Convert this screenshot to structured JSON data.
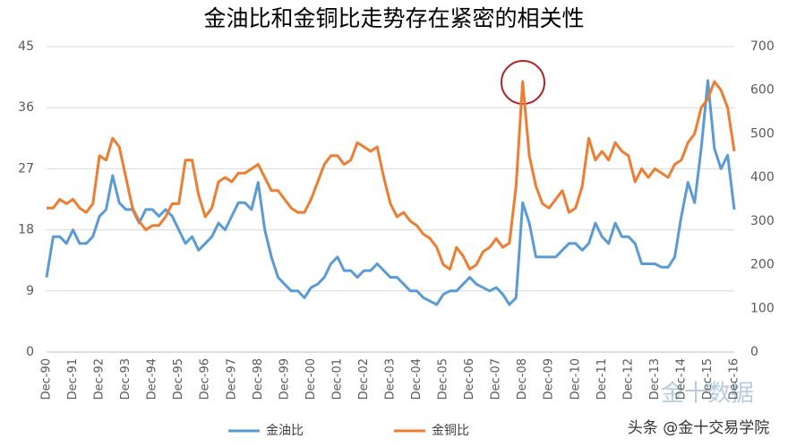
{
  "chart_data": {
    "type": "line",
    "title": "金油比和金铜比走势存在紧密的相关性",
    "categories": [
      "Dec-90",
      null,
      null,
      null,
      "Dec-91",
      null,
      null,
      null,
      "Dec-92",
      null,
      null,
      null,
      "Dec-93",
      null,
      null,
      null,
      "Dec-94",
      null,
      null,
      null,
      "Dec-95",
      null,
      null,
      null,
      "Dec-96",
      null,
      null,
      null,
      "Dec-97",
      null,
      null,
      null,
      "Dec-98",
      null,
      null,
      null,
      "Dec-99",
      null,
      null,
      null,
      "Dec-00",
      null,
      null,
      null,
      "Dec-01",
      null,
      null,
      null,
      "Dec-02",
      null,
      null,
      null,
      "Dec-03",
      null,
      null,
      null,
      "Dec-04",
      null,
      null,
      null,
      "Dec-05",
      null,
      null,
      null,
      "Dec-06",
      null,
      null,
      null,
      "Dec-07",
      null,
      null,
      null,
      "Dec-08",
      null,
      null,
      null,
      "Dec-09",
      null,
      null,
      null,
      "Dec-10",
      null,
      null,
      null,
      "Dec-11",
      null,
      null,
      null,
      "Dec-12",
      null,
      null,
      null,
      "Dec-13",
      null,
      null,
      null,
      "Dec-14",
      null,
      null,
      null,
      "Dec-15",
      null,
      null,
      null,
      "Dec-16"
    ],
    "series": [
      {
        "name": "金油比",
        "color": "#5b9bd5",
        "values": [
          11,
          17,
          17,
          16,
          18,
          16,
          16,
          17,
          20,
          21,
          26,
          22,
          21,
          21,
          19,
          21,
          21,
          20,
          21,
          20,
          18,
          16,
          17,
          15,
          16,
          17,
          19,
          18,
          20,
          22,
          22,
          21,
          25,
          18,
          14,
          11,
          10,
          9,
          9,
          8,
          9.5,
          10,
          11,
          13,
          14,
          12,
          12,
          11,
          12,
          12,
          13,
          12,
          11,
          11,
          10,
          9,
          9,
          8,
          7.5,
          7,
          8.5,
          9,
          9,
          10,
          11,
          10,
          9.5,
          9,
          9.5,
          8.5,
          7,
          8,
          22,
          19,
          14,
          14,
          14,
          14,
          15,
          16,
          16,
          15,
          16,
          19,
          17,
          16,
          19,
          17,
          17,
          16,
          13,
          13,
          13,
          12.5,
          12.5,
          14,
          20,
          25,
          22,
          30,
          40,
          30,
          27,
          29,
          21
        ]
      },
      {
        "name": "金铜比",
        "color": "#ed7d31",
        "axis": "y2",
        "values": [
          330,
          330,
          350,
          340,
          350,
          330,
          320,
          340,
          450,
          440,
          490,
          470,
          400,
          330,
          300,
          280,
          290,
          290,
          310,
          340,
          340,
          440,
          440,
          360,
          310,
          330,
          390,
          400,
          390,
          410,
          410,
          420,
          430,
          400,
          370,
          370,
          350,
          330,
          320,
          320,
          350,
          390,
          430,
          450,
          450,
          430,
          440,
          480,
          470,
          460,
          470,
          400,
          340,
          310,
          320,
          300,
          290,
          270,
          260,
          240,
          200,
          190,
          240,
          220,
          190,
          200,
          230,
          240,
          260,
          240,
          250,
          380,
          620,
          450,
          380,
          340,
          330,
          350,
          370,
          320,
          330,
          380,
          490,
          440,
          460,
          440,
          480,
          460,
          450,
          390,
          420,
          400,
          420,
          410,
          400,
          430,
          440,
          480,
          500,
          560,
          580,
          620,
          600,
          560,
          460
        ]
      }
    ],
    "ylim": [
      0,
      45
    ],
    "yticks": [
      0,
      9,
      18,
      27,
      36,
      45
    ],
    "y2lim": [
      0,
      700
    ],
    "y2ticks": [
      0,
      100,
      200,
      300,
      400,
      500,
      600,
      700
    ],
    "grid": true,
    "legend": "bottom",
    "annotations": [
      "金十数据",
      "头条 @金十交易学院"
    ]
  }
}
